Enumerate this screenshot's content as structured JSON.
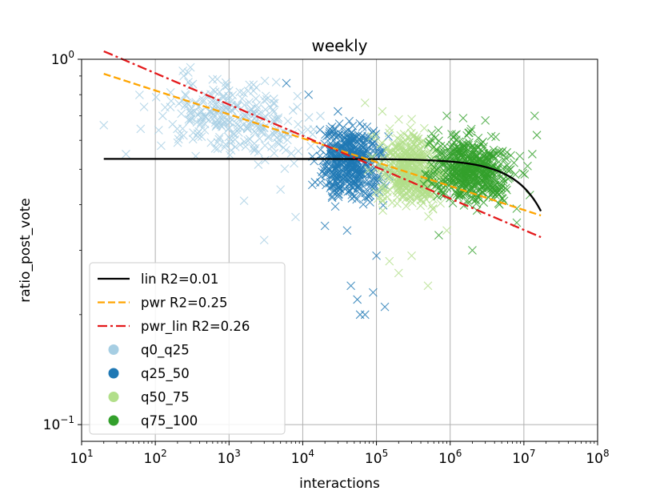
{
  "chart_data": {
    "type": "scatter",
    "title": "weekly",
    "xlabel": "interactions",
    "ylabel": "ratio_post_vote",
    "xscale": "log",
    "yscale": "log",
    "xlim": [
      10,
      100000000
    ],
    "ylim": [
      0.09,
      1.0
    ],
    "x_tick_labels": [
      {
        "value": 10,
        "base": "10",
        "exp": "1"
      },
      {
        "value": 100,
        "base": "10",
        "exp": "2"
      },
      {
        "value": 1000,
        "base": "10",
        "exp": "3"
      },
      {
        "value": 10000,
        "base": "10",
        "exp": "4"
      },
      {
        "value": 100000,
        "base": "10",
        "exp": "5"
      },
      {
        "value": 1000000,
        "base": "10",
        "exp": "6"
      },
      {
        "value": 10000000,
        "base": "10",
        "exp": "7"
      },
      {
        "value": 100000000,
        "base": "10",
        "exp": "8"
      }
    ],
    "y_tick_labels": [
      {
        "value": 1.0,
        "base": "10",
        "exp": "0"
      },
      {
        "value": 0.1,
        "base": "10",
        "exp": "−1"
      }
    ],
    "grid": "x-major and y-major",
    "legend_placement": "lower-left",
    "marker": "x",
    "series": [
      {
        "name": "q0_q25",
        "color": "#a6cee3",
        "x_log_range": [
          1.3,
          4.9
        ],
        "y_center": 0.68,
        "y_spread": 0.17,
        "points": [
          [
            20,
            0.66
          ],
          [
            40,
            0.55
          ],
          [
            120,
            0.58
          ],
          [
            160,
            0.74
          ],
          [
            300,
            0.95
          ],
          [
            280,
            0.92
          ],
          [
            600,
            0.88
          ],
          [
            1000,
            0.82
          ],
          [
            1500,
            0.78
          ],
          [
            3000,
            0.65
          ],
          [
            5000,
            0.44
          ],
          [
            8000,
            0.37
          ],
          [
            1600,
            0.41
          ],
          [
            3000,
            0.32
          ],
          [
            25000,
            0.47
          ]
        ]
      },
      {
        "name": "q25_50",
        "color": "#1f78b4",
        "x_log_range": [
          3.9,
          5.4
        ],
        "y_center": 0.52,
        "y_spread": 0.19,
        "points": [
          [
            6000,
            0.86
          ],
          [
            12000,
            0.8
          ],
          [
            30000,
            0.72
          ],
          [
            40000,
            0.34
          ],
          [
            45000,
            0.24
          ],
          [
            55000,
            0.22
          ],
          [
            60000,
            0.2
          ],
          [
            70000,
            0.2
          ],
          [
            90000,
            0.23
          ],
          [
            130000,
            0.21
          ],
          [
            100000,
            0.29
          ],
          [
            20000,
            0.35
          ]
        ]
      },
      {
        "name": "q50_75",
        "color": "#b2df8a",
        "x_log_range": [
          4.7,
          6.2
        ],
        "y_center": 0.5,
        "y_spread": 0.17,
        "points": [
          [
            70000,
            0.76
          ],
          [
            120000,
            0.72
          ],
          [
            150000,
            0.28
          ],
          [
            200000,
            0.26
          ],
          [
            300000,
            0.29
          ],
          [
            500000,
            0.24
          ],
          [
            900000,
            0.34
          ],
          [
            1200000,
            0.5
          ]
        ]
      },
      {
        "name": "q75_100",
        "color": "#33a02c",
        "x_log_range": [
          5.3,
          7.25
        ],
        "y_center": 0.5,
        "y_spread": 0.16,
        "points": [
          [
            900000,
            0.7
          ],
          [
            1500000,
            0.69
          ],
          [
            3000000,
            0.68
          ],
          [
            14000000,
            0.7
          ],
          [
            15000000,
            0.62
          ],
          [
            13000000,
            0.55
          ],
          [
            700000,
            0.33
          ],
          [
            2000000,
            0.3
          ],
          [
            8000000,
            0.39
          ]
        ]
      }
    ],
    "fits": [
      {
        "name": "lin R2=0.01",
        "color": "#000000",
        "dash": "solid",
        "kind": "lin",
        "x_range": [
          20,
          17000000
        ],
        "a": 0.5337,
        "b": -8.8e-09
      },
      {
        "name": "pwr R2=0.25",
        "color": "#ffa500",
        "dash": "dashed",
        "kind": "pwr",
        "x_range": [
          20,
          17000000
        ],
        "a": 1.11,
        "b": -0.0654
      },
      {
        "name": "pwr_lin R2=0.26",
        "color": "#e41a1c",
        "dash": "dashdot",
        "kind": "pwr",
        "x_range": [
          20,
          17000000
        ],
        "a": 1.36,
        "b": -0.0858
      }
    ]
  }
}
